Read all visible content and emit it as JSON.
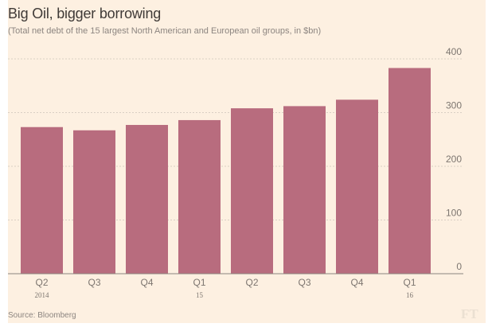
{
  "chart_data": {
    "type": "bar",
    "title": "Big Oil, bigger borrowing",
    "subtitle": "(Total net debt of the 15 largest North American and European oil groups, in $bn)",
    "source": "Source: Bloomberg",
    "logo": "FT",
    "categories": [
      "Q2",
      "Q3",
      "Q4",
      "Q1",
      "Q2",
      "Q3",
      "Q4",
      "Q1"
    ],
    "category_sublabels": [
      "2014",
      "",
      "",
      "15",
      "",
      "",
      "",
      "16"
    ],
    "values": [
      273,
      267,
      277,
      286,
      308,
      312,
      324,
      383
    ],
    "xlabel": "",
    "ylabel": "",
    "ylim": [
      0,
      400
    ],
    "yticks": [
      0,
      100,
      200,
      300,
      400
    ],
    "y_axis_side": "right",
    "grid": true,
    "colors": {
      "bar": "#b86c7e",
      "background": "#fdf0e1",
      "grid": "#d9cfc4",
      "axis": "#8c8580"
    }
  }
}
